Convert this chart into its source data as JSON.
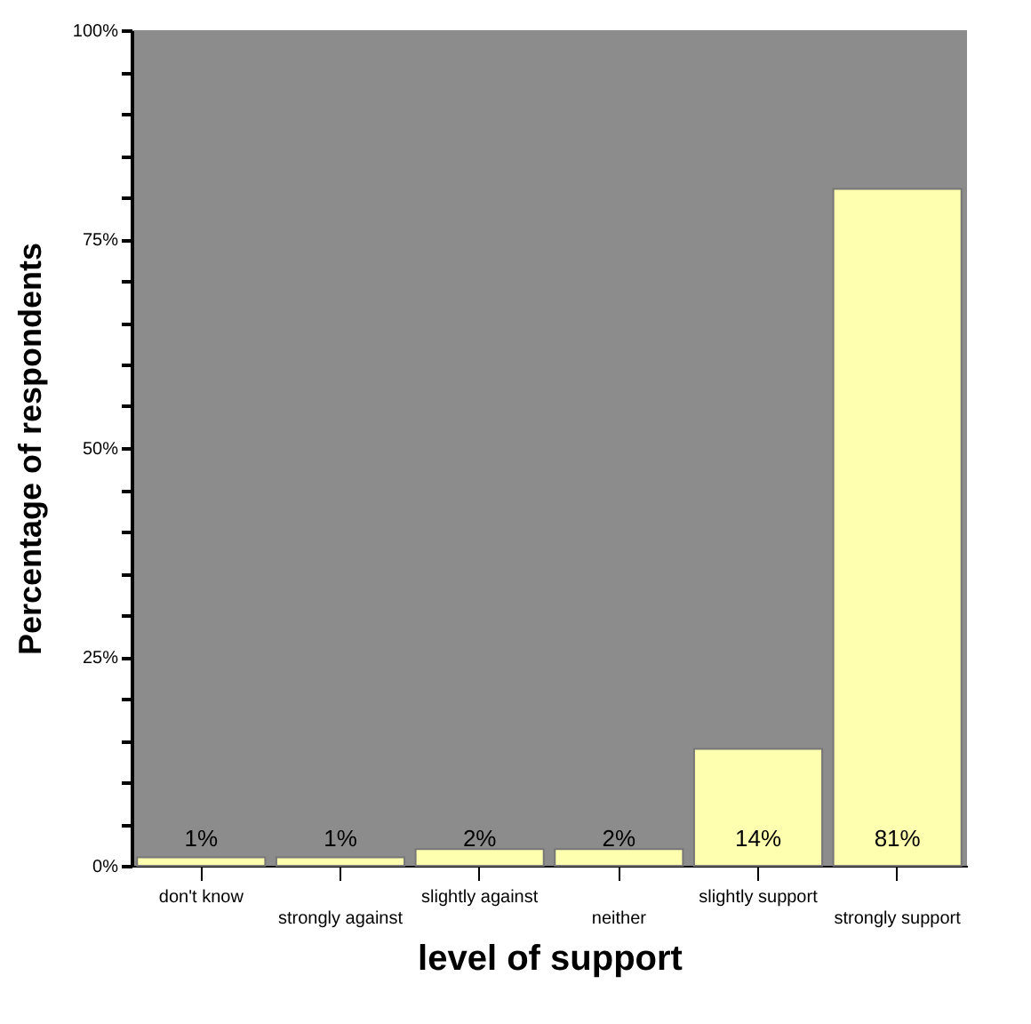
{
  "chart_data": {
    "type": "bar",
    "xlabel": "level of support",
    "ylabel": "Percentage of respondents",
    "categories": [
      "don't know",
      "strongly against",
      "slightly against",
      "neither",
      "slightly support",
      "strongly support"
    ],
    "values": [
      1,
      1,
      2,
      2,
      14,
      81
    ],
    "value_labels": [
      "1%",
      "1%",
      "2%",
      "2%",
      "14%",
      "81%"
    ],
    "color": "#ffffb0",
    "ylim": [
      0,
      100
    ],
    "yticks": [
      {
        "value": 0,
        "label": "0%"
      },
      {
        "value": 5,
        "label": null
      },
      {
        "value": 10,
        "label": null
      },
      {
        "value": 15,
        "label": null
      },
      {
        "value": 20,
        "label": null
      },
      {
        "value": 25,
        "label": "25%"
      },
      {
        "value": 30,
        "label": null
      },
      {
        "value": 35,
        "label": null
      },
      {
        "value": 40,
        "label": null
      },
      {
        "value": 45,
        "label": null
      },
      {
        "value": 50,
        "label": "50%"
      },
      {
        "value": 55,
        "label": null
      },
      {
        "value": 60,
        "label": null
      },
      {
        "value": 65,
        "label": null
      },
      {
        "value": 70,
        "label": null
      },
      {
        "value": 75,
        "label": "75%"
      },
      {
        "value": 80,
        "label": null
      },
      {
        "value": 85,
        "label": null
      },
      {
        "value": 90,
        "label": null
      },
      {
        "value": 95,
        "label": null
      },
      {
        "value": 100,
        "label": "100%"
      }
    ]
  }
}
